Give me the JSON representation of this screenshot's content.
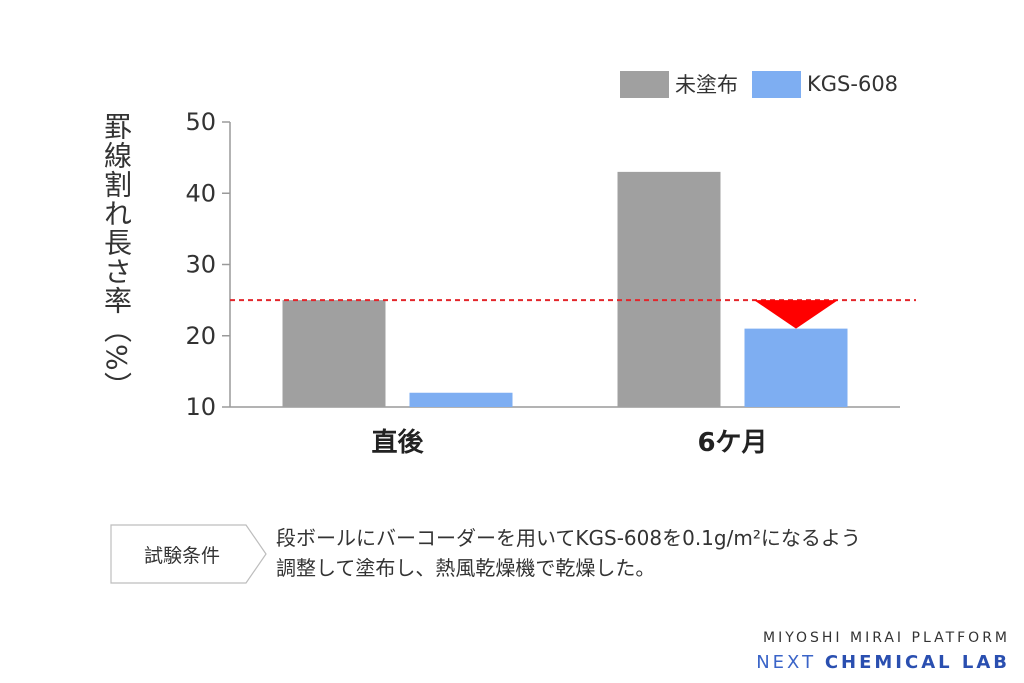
{
  "chart_data": {
    "type": "bar",
    "categories": [
      "直後",
      "6ケ月"
    ],
    "series": [
      {
        "name": "未塗布",
        "values": [
          25,
          43
        ],
        "color": "#a0a0a0"
      },
      {
        "name": "KGS-608",
        "values": [
          12,
          21
        ],
        "color": "#7eaef2"
      }
    ],
    "ylabel": "罫線割れ長さ率（%）",
    "ylim": [
      10,
      50
    ],
    "yticks": [
      10,
      20,
      30,
      40,
      50
    ],
    "reference_line": {
      "value": 25,
      "color": "#e3262b",
      "style": "dashed"
    },
    "annotation": {
      "type": "down-arrow",
      "from": 25,
      "to": 21,
      "category": "6ケ月",
      "color": "#ff0000"
    },
    "legend_position": "top-right"
  },
  "conditions": {
    "label": "試験条件",
    "line1": "段ボールにバーコーダーを用いてKGS-608を0.1g/m²になるよう",
    "line2": "調整して塗布し、熱風乾燥機で乾燥した。"
  },
  "brand": {
    "line1": "MIYOSHI MIRAI PLATFORM",
    "next": "NEXT",
    "chemical_lab": "CHEMICAL LAB"
  }
}
